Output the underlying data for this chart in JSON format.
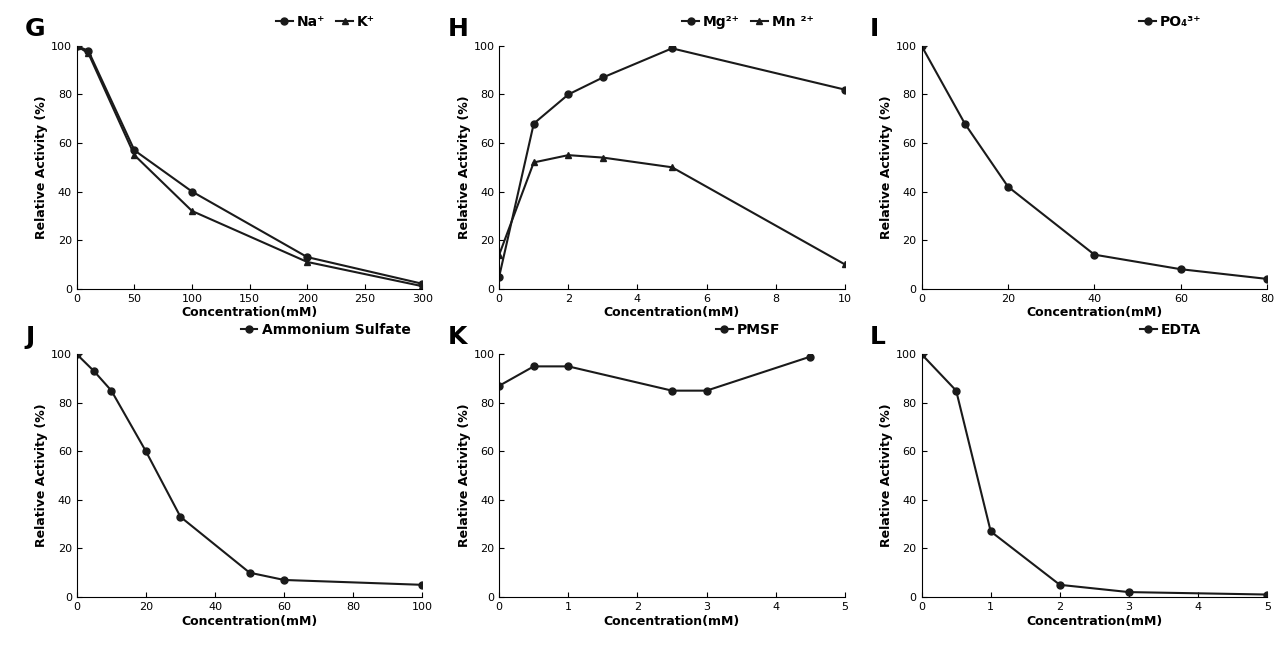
{
  "panels": [
    {
      "label": "G",
      "legend_labels": [
        "Na⁺",
        "K⁺"
      ],
      "legend_markers": [
        "circle",
        "triangle"
      ],
      "series": [
        {
          "x": [
            0,
            10,
            50,
            100,
            200,
            300
          ],
          "y": [
            100,
            98,
            57,
            40,
            13,
            2
          ]
        },
        {
          "x": [
            0,
            10,
            50,
            100,
            200,
            300
          ],
          "y": [
            100,
            97,
            55,
            32,
            11,
            1
          ]
        }
      ],
      "xlabel": "Concentration(mM)",
      "ylabel": "Relative Activity (%)",
      "xlim": [
        0,
        300
      ],
      "ylim": [
        0,
        100
      ],
      "xticks": [
        0,
        50,
        100,
        150,
        200,
        250,
        300
      ],
      "yticks": [
        0,
        20,
        40,
        60,
        80,
        100
      ]
    },
    {
      "label": "H",
      "legend_labels": [
        "Mg²⁺",
        "Mn ²⁺"
      ],
      "legend_markers": [
        "circle",
        "triangle"
      ],
      "series": [
        {
          "x": [
            0,
            1,
            2,
            3,
            5,
            10
          ],
          "y": [
            5,
            68,
            80,
            87,
            99,
            82
          ]
        },
        {
          "x": [
            0,
            1,
            2,
            3,
            5,
            10
          ],
          "y": [
            14,
            52,
            55,
            54,
            50,
            10
          ]
        }
      ],
      "xlabel": "Concentration(mM)",
      "ylabel": "Relative Activity (%)",
      "xlim": [
        0,
        10
      ],
      "ylim": [
        0,
        100
      ],
      "xticks": [
        0,
        2,
        4,
        6,
        8,
        10
      ],
      "yticks": [
        0,
        20,
        40,
        60,
        80,
        100
      ]
    },
    {
      "label": "I",
      "legend_labels": [
        "PO₄³⁺"
      ],
      "legend_markers": [
        "circle"
      ],
      "series": [
        {
          "x": [
            0,
            10,
            20,
            40,
            60,
            80
          ],
          "y": [
            100,
            68,
            42,
            14,
            8,
            4
          ]
        }
      ],
      "xlabel": "Concentration(mM)",
      "ylabel": "Relative Activity (%)",
      "xlim": [
        0,
        80
      ],
      "ylim": [
        0,
        100
      ],
      "xticks": [
        0,
        20,
        40,
        60,
        80
      ],
      "yticks": [
        0,
        20,
        40,
        60,
        80,
        100
      ]
    },
    {
      "label": "J",
      "legend_labels": [
        "Ammonium Sulfate"
      ],
      "legend_markers": [
        "circle"
      ],
      "series": [
        {
          "x": [
            0,
            5,
            10,
            20,
            30,
            50,
            60,
            100
          ],
          "y": [
            100,
            93,
            85,
            60,
            33,
            10,
            7,
            5
          ]
        }
      ],
      "xlabel": "Concentration(mM)",
      "ylabel": "Relative Activity (%)",
      "xlim": [
        0,
        100
      ],
      "ylim": [
        0,
        100
      ],
      "xticks": [
        0,
        20,
        40,
        60,
        80,
        100
      ],
      "yticks": [
        0,
        20,
        40,
        60,
        80,
        100
      ]
    },
    {
      "label": "K",
      "legend_labels": [
        "PMSF"
      ],
      "legend_markers": [
        "circle"
      ],
      "series": [
        {
          "x": [
            0,
            0.5,
            1,
            2.5,
            3,
            4.5
          ],
          "y": [
            87,
            95,
            95,
            85,
            85,
            99
          ]
        }
      ],
      "xlabel": "Concentration(mM)",
      "ylabel": "Relative Activity (%)",
      "xlim": [
        0,
        5
      ],
      "ylim": [
        0,
        100
      ],
      "xticks": [
        0,
        1,
        2,
        3,
        4,
        5
      ],
      "yticks": [
        0,
        20,
        40,
        60,
        80,
        100
      ]
    },
    {
      "label": "L",
      "legend_labels": [
        "EDTA"
      ],
      "legend_markers": [
        "circle"
      ],
      "series": [
        {
          "x": [
            0,
            0.5,
            1,
            2,
            3,
            5
          ],
          "y": [
            100,
            85,
            27,
            5,
            2,
            1
          ]
        }
      ],
      "xlabel": "Concentration(mM)",
      "ylabel": "Relative Activity (%)",
      "xlim": [
        0,
        5
      ],
      "ylim": [
        0,
        100
      ],
      "xticks": [
        0,
        1,
        2,
        3,
        4,
        5
      ],
      "yticks": [
        0,
        20,
        40,
        60,
        80,
        100
      ]
    }
  ],
  "line_color": "#1a1a1a",
  "marker_size": 5,
  "linewidth": 1.5,
  "panel_label_fontsize": 18,
  "axis_label_fontsize": 9,
  "tick_fontsize": 8,
  "legend_fontsize": 10
}
